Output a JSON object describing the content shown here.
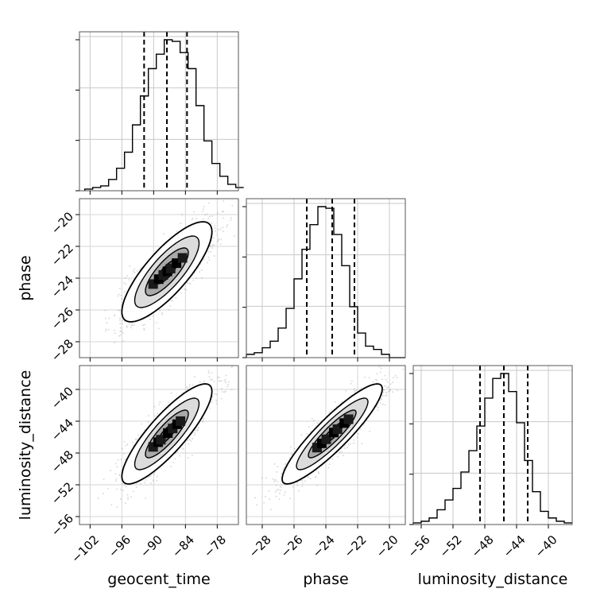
{
  "chart_data": {
    "type": "corner",
    "parameters": [
      {
        "name": "geocent_time",
        "label": "geocent_time",
        "range": [
          -104,
          -74
        ],
        "ticks": [
          -102,
          -96,
          -90,
          -84,
          -78
        ],
        "tick_labels": [
          "−102",
          "−96",
          "−90",
          "−84",
          "−78"
        ],
        "quantiles": [
          -91.8,
          -87.5,
          -83.7
        ]
      },
      {
        "name": "phase",
        "label": "phase",
        "range": [
          -29,
          -19
        ],
        "ticks": [
          -28,
          -26,
          -24,
          -22,
          -20
        ],
        "tick_labels": [
          "−28",
          "−26",
          "−24",
          "−22",
          "−20"
        ],
        "quantiles": [
          -25.2,
          -23.6,
          -22.2
        ]
      },
      {
        "name": "luminosity_distance",
        "label": "luminosity_distance",
        "range": [
          -57,
          -37
        ],
        "ticks": [
          -56,
          -52,
          -48,
          -44,
          -40
        ],
        "tick_labels": [
          "−56",
          "−52",
          "−48",
          "−44",
          "−40"
        ],
        "quantiles": [
          -48.6,
          -45.6,
          -42.6
        ]
      }
    ],
    "histograms": [
      {
        "param": "geocent_time",
        "bin_start": -103,
        "bin_width": 1.5,
        "counts": [
          1,
          2,
          3,
          7,
          14,
          24,
          41,
          59,
          76,
          85,
          94,
          93,
          86,
          76,
          53,
          31,
          17,
          9,
          4,
          2
        ]
      },
      {
        "param": "phase",
        "bin_start": -29,
        "bin_width": 0.5,
        "counts": [
          2,
          3,
          6,
          10,
          18,
          30,
          48,
          66,
          81,
          92,
          91,
          75,
          56,
          31,
          15,
          7,
          5,
          2,
          0,
          0
        ]
      },
      {
        "param": "luminosity_distance",
        "bin_start": -57,
        "bin_width": 1.0,
        "counts": [
          1,
          2,
          4,
          9,
          15,
          22,
          32,
          45,
          60,
          77,
          89,
          92,
          81,
          62,
          39,
          20,
          8,
          4,
          2,
          1
        ]
      }
    ],
    "correlations": [
      {
        "x": "geocent_time",
        "y": "phase",
        "rho": 0.8
      },
      {
        "x": "geocent_time",
        "y": "luminosity_distance",
        "rho": 0.85
      },
      {
        "x": "phase",
        "y": "luminosity_distance",
        "rho": 0.9
      }
    ],
    "grid": true,
    "hist_ytick_labels_shown": false
  }
}
